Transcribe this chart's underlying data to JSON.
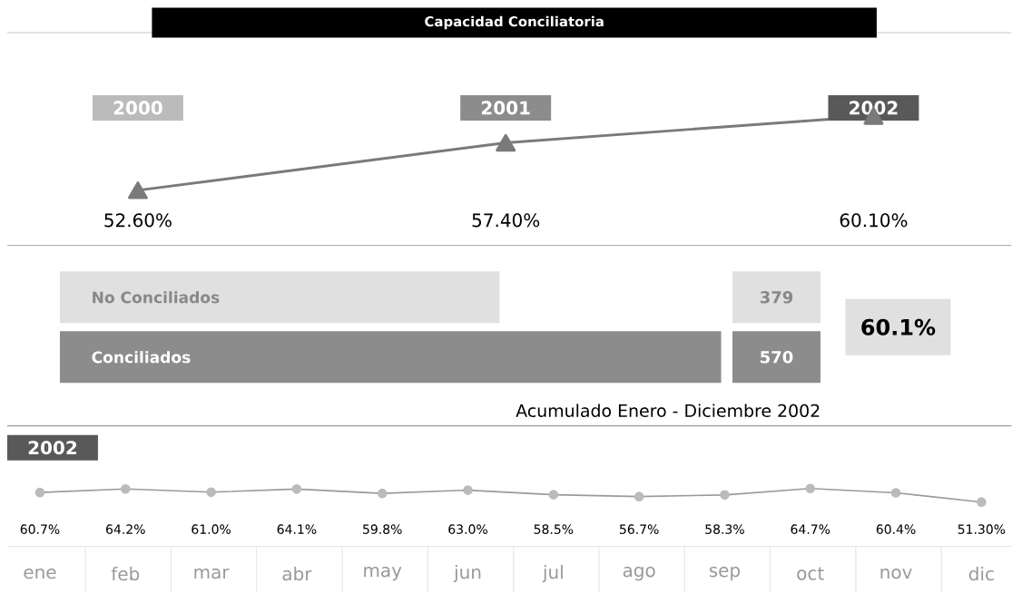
{
  "chart_data": [
    {
      "type": "line",
      "title": "Capacidad Conciliatoria",
      "categories": [
        "2000",
        "2001",
        "2002"
      ],
      "values": [
        52.6,
        57.4,
        60.1
      ],
      "value_labels": [
        "52.60%",
        "57.40%",
        "60.10%"
      ],
      "color": "#7a7a7a",
      "marker": "triangle"
    },
    {
      "type": "bar",
      "orientation": "horizontal",
      "categories": [
        "No Conciliados",
        "Conciliados"
      ],
      "values": [
        379,
        570
      ],
      "colors": [
        "#e0e0e0",
        "#8c8c8c"
      ],
      "data_labels": true,
      "annotations": [
        "60.1%",
        "Acumulado Enero - Diciembre 2002"
      ]
    },
    {
      "type": "line",
      "title": "2002",
      "categories": [
        "ene",
        "feb",
        "mar",
        "abr",
        "may",
        "jun",
        "jul",
        "ago",
        "sep",
        "oct",
        "nov",
        "dic"
      ],
      "values": [
        60.7,
        64.2,
        61.0,
        64.1,
        59.8,
        63.0,
        58.5,
        56.7,
        58.3,
        64.7,
        60.4,
        51.3
      ],
      "value_labels": [
        "60.7%",
        "64.2%",
        "61.0%",
        "64.1%",
        "59.8%",
        "63.0%",
        "58.5%",
        "56.7%",
        "58.3%",
        "64.7%",
        "60.4%",
        "51.30%"
      ],
      "color": "#9a9a9a",
      "marker": "circle"
    }
  ]
}
